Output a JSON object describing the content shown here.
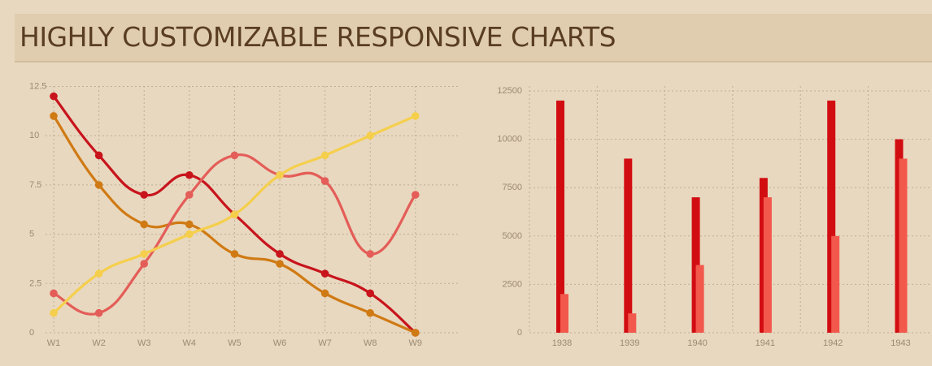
{
  "page": {
    "title": "HIGHLY CUSTOMIZABLE RESPONSIVE CHARTS"
  },
  "chart_data": [
    {
      "type": "line",
      "categories": [
        "W1",
        "W2",
        "W3",
        "W4",
        "W5",
        "W6",
        "W7",
        "W8",
        "W9"
      ],
      "yticks": [
        "0",
        "2.5",
        "5",
        "7.5",
        "10",
        "12.5"
      ],
      "ylim": [
        0,
        12.5
      ],
      "grid": true,
      "series": [
        {
          "color": "#c8141c",
          "values": [
            12,
            9,
            7,
            8,
            6,
            4,
            3,
            2,
            0
          ]
        },
        {
          "color": "#d07a14",
          "values": [
            11,
            7.5,
            5.5,
            5.5,
            4,
            3.5,
            2,
            1,
            0
          ]
        },
        {
          "color": "#e45d58",
          "values": [
            2,
            1,
            3.5,
            7,
            9,
            8,
            7.7,
            4,
            7
          ]
        },
        {
          "color": "#f5cf4c",
          "values": [
            1,
            3,
            4,
            5,
            6,
            8,
            9,
            10,
            11
          ]
        }
      ]
    },
    {
      "type": "bar",
      "categories": [
        "1938",
        "1939",
        "1940",
        "1941",
        "1942",
        "1943"
      ],
      "yticks": [
        "0",
        "2500",
        "5000",
        "7500",
        "10000",
        "12500"
      ],
      "ylim": [
        0,
        12500
      ],
      "grid": true,
      "series": [
        {
          "color": "#d20d12",
          "values": [
            12000,
            9000,
            7000,
            8000,
            12000,
            10000
          ]
        },
        {
          "color": "#f2584c",
          "values": [
            2000,
            1000,
            3500,
            7000,
            5000,
            9000
          ]
        }
      ]
    }
  ]
}
